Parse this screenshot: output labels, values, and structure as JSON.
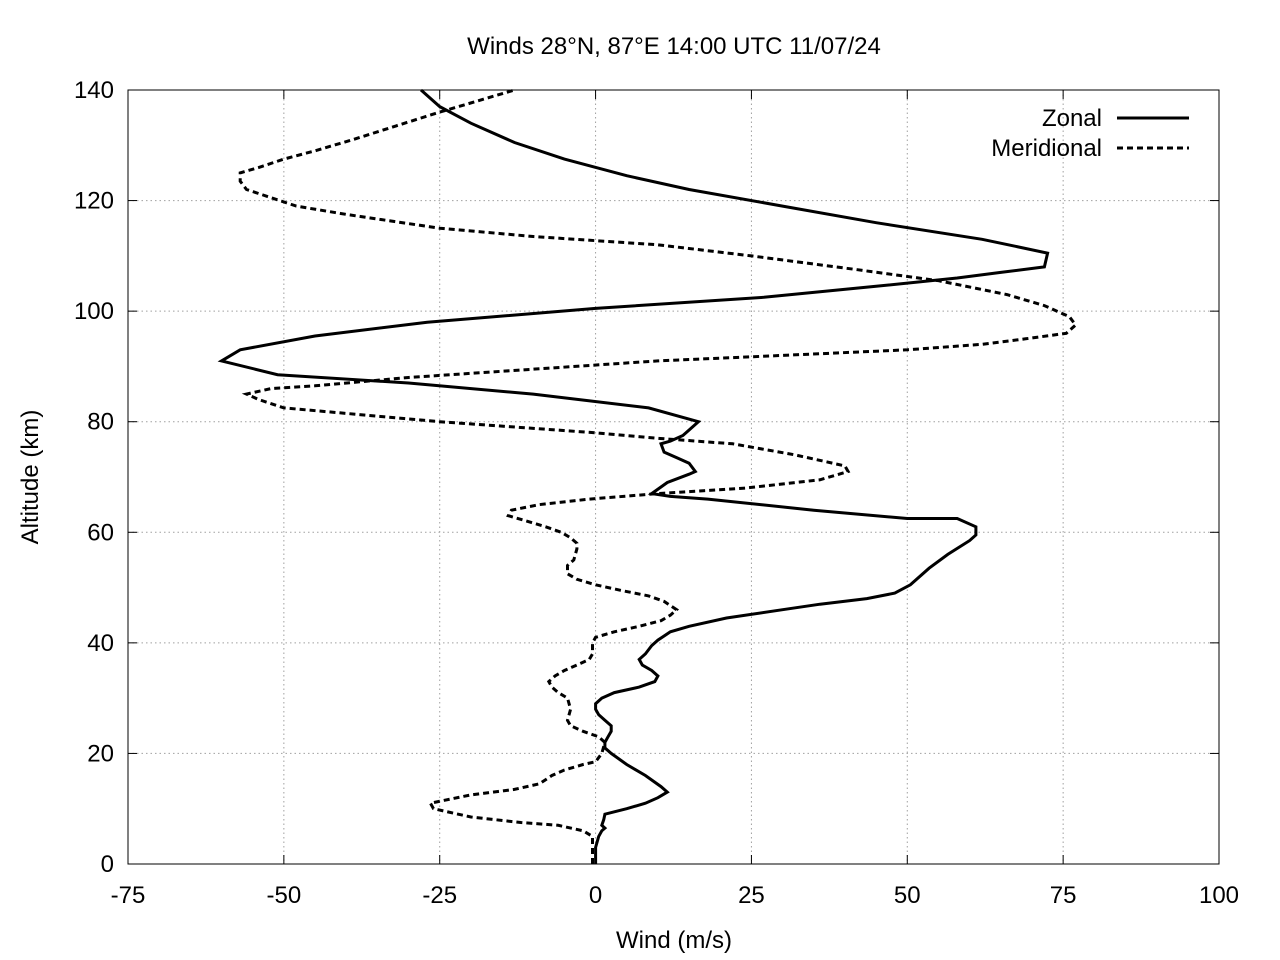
{
  "chart_data": {
    "type": "line",
    "title": "Winds 28°N, 87°E 14:00 UTC 11/07/24",
    "xlabel": "Wind (m/s)",
    "ylabel": "Altitude (km)",
    "xlim": [
      -75,
      100
    ],
    "ylim": [
      0,
      140
    ],
    "x_ticks": [
      -75,
      -50,
      -25,
      0,
      25,
      50,
      75,
      100
    ],
    "y_ticks": [
      0,
      20,
      40,
      60,
      80,
      100,
      120,
      140
    ],
    "x_tick_labels": [
      "-75",
      "-50",
      "-25",
      "0",
      "25",
      "50",
      "75",
      "100"
    ],
    "y_tick_labels": [
      "0",
      "20",
      "40",
      "60",
      "80",
      "100",
      "120",
      "140"
    ],
    "grid": true,
    "legend_position": "top-right",
    "series": [
      {
        "name": "Zonal",
        "style": "solid",
        "color": "#000000",
        "points": [
          [
            0,
            0
          ],
          [
            0,
            3
          ],
          [
            0.5,
            5
          ],
          [
            1,
            6
          ],
          [
            1.5,
            6.5
          ],
          [
            1,
            7
          ],
          [
            1.3,
            8
          ],
          [
            1.5,
            9
          ],
          [
            5,
            10
          ],
          [
            8,
            11
          ],
          [
            10,
            12
          ],
          [
            11.5,
            13
          ],
          [
            10.5,
            14
          ],
          [
            8,
            16
          ],
          [
            5,
            18
          ],
          [
            2.5,
            20
          ],
          [
            1.5,
            21
          ],
          [
            1.5,
            22
          ],
          [
            2,
            23
          ],
          [
            2.5,
            24
          ],
          [
            2.5,
            25
          ],
          [
            1.5,
            26
          ],
          [
            0.5,
            27
          ],
          [
            0,
            28
          ],
          [
            0,
            29
          ],
          [
            1,
            30
          ],
          [
            3,
            31
          ],
          [
            7,
            32
          ],
          [
            9.5,
            33
          ],
          [
            10,
            34
          ],
          [
            9,
            35
          ],
          [
            7.5,
            36
          ],
          [
            7,
            37
          ],
          [
            8,
            38
          ],
          [
            9,
            39.5
          ],
          [
            10,
            40.5
          ],
          [
            12,
            42
          ],
          [
            15,
            43
          ],
          [
            21,
            44.5
          ],
          [
            30,
            46
          ],
          [
            36,
            47
          ],
          [
            43.5,
            48
          ],
          [
            48,
            49
          ],
          [
            50.5,
            50.5
          ],
          [
            53.5,
            53.5
          ],
          [
            56.5,
            56
          ],
          [
            60,
            58.5
          ],
          [
            61,
            59.5
          ],
          [
            61,
            61
          ],
          [
            58,
            62.5
          ],
          [
            50,
            62.5
          ],
          [
            35,
            64
          ],
          [
            18,
            66
          ],
          [
            12,
            66.5
          ],
          [
            9,
            67
          ],
          [
            11.5,
            69
          ],
          [
            15,
            70.5
          ],
          [
            16,
            71
          ],
          [
            15,
            72.5
          ],
          [
            13,
            73.5
          ],
          [
            11,
            74.5
          ],
          [
            10.5,
            76
          ],
          [
            12,
            76.5
          ],
          [
            14,
            77.5
          ],
          [
            15,
            78.5
          ],
          [
            16.5,
            80
          ],
          [
            8.5,
            82.5
          ],
          [
            -10,
            85
          ],
          [
            -30,
            87
          ],
          [
            -51,
            88.5
          ],
          [
            -60,
            91
          ],
          [
            -57,
            93
          ],
          [
            -45,
            95.5
          ],
          [
            -27,
            98
          ],
          [
            0,
            100.5
          ],
          [
            27,
            102.5
          ],
          [
            45,
            104.5
          ],
          [
            58,
            106
          ],
          [
            65,
            107
          ],
          [
            72,
            108
          ],
          [
            72.5,
            110.5
          ],
          [
            62,
            113
          ],
          [
            45,
            116
          ],
          [
            30,
            119
          ],
          [
            15,
            122
          ],
          [
            5,
            124.5
          ],
          [
            -5,
            127.5
          ],
          [
            -13,
            130.5
          ],
          [
            -20,
            134
          ],
          [
            -25,
            137
          ],
          [
            -28,
            140
          ]
        ]
      },
      {
        "name": "Meridional",
        "style": "dashed",
        "color": "#000000",
        "points": [
          [
            -0.5,
            0
          ],
          [
            -0.5,
            3
          ],
          [
            -0.5,
            5
          ],
          [
            -2,
            6
          ],
          [
            -6,
            7
          ],
          [
            -12,
            7.5
          ],
          [
            -20,
            8.5
          ],
          [
            -26,
            10
          ],
          [
            -26.5,
            11
          ],
          [
            -20,
            12.5
          ],
          [
            -13,
            13.5
          ],
          [
            -9,
            14.5
          ],
          [
            -7,
            16
          ],
          [
            -5,
            17
          ],
          [
            -2,
            18
          ],
          [
            0,
            18.5
          ],
          [
            1,
            20
          ],
          [
            1.5,
            22
          ],
          [
            0.5,
            23
          ],
          [
            -2,
            24
          ],
          [
            -4,
            25
          ],
          [
            -4.5,
            26
          ],
          [
            -4,
            28
          ],
          [
            -4.5,
            30
          ],
          [
            -6,
            31
          ],
          [
            -7,
            32
          ],
          [
            -7.5,
            33
          ],
          [
            -6.5,
            34
          ],
          [
            -5,
            35
          ],
          [
            -3,
            36
          ],
          [
            -1,
            37
          ],
          [
            -0.5,
            38
          ],
          [
            -0.5,
            40
          ],
          [
            0,
            41
          ],
          [
            3,
            42
          ],
          [
            7,
            43
          ],
          [
            10.5,
            44
          ],
          [
            12,
            45
          ],
          [
            13,
            46
          ],
          [
            11,
            47.5
          ],
          [
            8.5,
            48.5
          ],
          [
            4,
            49.5
          ],
          [
            0,
            50.5
          ],
          [
            -3,
            51.5
          ],
          [
            -4.5,
            52.5
          ],
          [
            -4.5,
            54
          ],
          [
            -3.5,
            55
          ],
          [
            -3,
            57
          ],
          [
            -3,
            58
          ],
          [
            -4,
            59
          ],
          [
            -5.5,
            60
          ],
          [
            -8,
            61
          ],
          [
            -11,
            62
          ],
          [
            -14,
            63
          ],
          [
            -13.5,
            64
          ],
          [
            -9,
            65
          ],
          [
            -1,
            66
          ],
          [
            10,
            67
          ],
          [
            24,
            68
          ],
          [
            36,
            69.5
          ],
          [
            40.5,
            71
          ],
          [
            40,
            72
          ],
          [
            32,
            74
          ],
          [
            22,
            76
          ],
          [
            10,
            77
          ],
          [
            0,
            78
          ],
          [
            -25,
            80
          ],
          [
            -40,
            81.5
          ],
          [
            -50,
            82.5
          ],
          [
            -54,
            84
          ],
          [
            -56,
            85
          ],
          [
            -52,
            86
          ],
          [
            -45,
            86.5
          ],
          [
            -30,
            88
          ],
          [
            -10,
            89.5
          ],
          [
            10,
            91
          ],
          [
            30,
            92
          ],
          [
            50,
            93
          ],
          [
            62,
            94
          ],
          [
            69,
            95
          ],
          [
            75.5,
            96
          ],
          [
            77,
            97.5
          ],
          [
            76,
            99
          ],
          [
            72,
            101
          ],
          [
            66,
            103
          ],
          [
            55,
            105.5
          ],
          [
            42,
            107.5
          ],
          [
            25,
            110
          ],
          [
            10,
            112
          ],
          [
            -10,
            113.5
          ],
          [
            -25,
            115
          ],
          [
            -40,
            117.5
          ],
          [
            -48,
            119
          ],
          [
            -52,
            120.5
          ],
          [
            -56,
            122
          ],
          [
            -57,
            123.5
          ],
          [
            -57,
            125
          ],
          [
            -54,
            126
          ],
          [
            -50,
            127.5
          ],
          [
            -45,
            129
          ],
          [
            -39,
            131
          ],
          [
            -32,
            133.5
          ],
          [
            -25,
            136
          ],
          [
            -19,
            138
          ],
          [
            -13,
            140
          ]
        ]
      }
    ]
  }
}
